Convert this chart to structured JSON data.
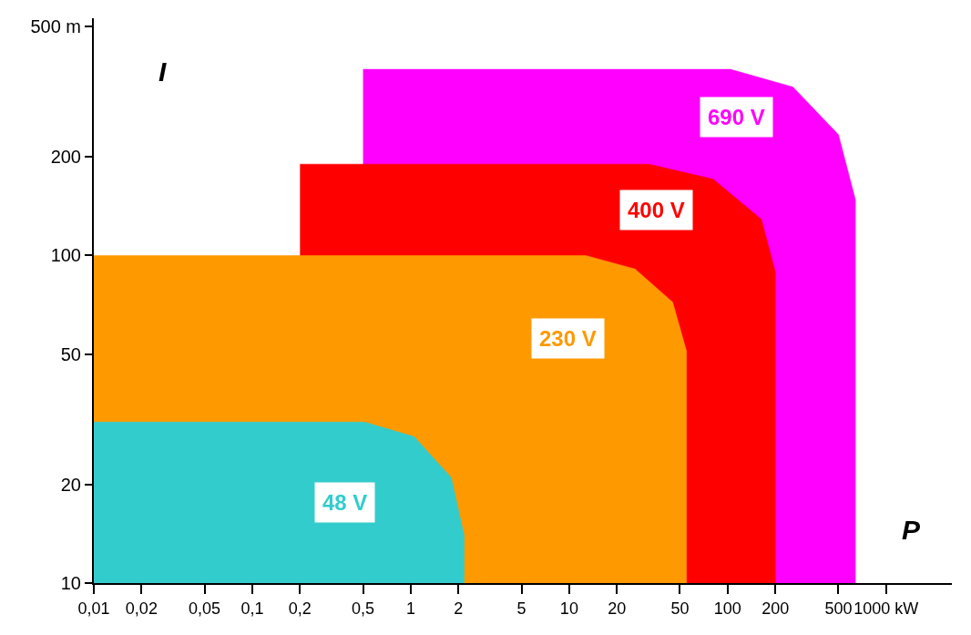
{
  "chart_data": {
    "type": "area",
    "xlabel": "P",
    "ylabel": "I",
    "log": "xy",
    "grid": false,
    "legend": false,
    "marker": "none",
    "xlim": [
      0.01,
      2600
    ],
    "ylim": [
      10,
      530
    ],
    "xticks": [
      {
        "value": 0.01,
        "label": "0,01"
      },
      {
        "value": 0.02,
        "label": "0,02"
      },
      {
        "value": 0.05,
        "label": "0,05"
      },
      {
        "value": 0.1,
        "label": "0,1"
      },
      {
        "value": 0.2,
        "label": "0,2"
      },
      {
        "value": 0.5,
        "label": "0,5"
      },
      1,
      2,
      5,
      10,
      20,
      50,
      100,
      200,
      500,
      {
        "value": 1000,
        "label": "1000 kW"
      }
    ],
    "yticks": [
      10,
      20,
      50,
      100,
      200,
      {
        "value": 500,
        "label": "500 m"
      }
    ],
    "series": [
      {
        "name": "48 V",
        "color": "#33cccc",
        "x": [
          0.01,
          0.51,
          1.05,
          1.8,
          2.17,
          2.17
        ],
        "values": [
          31,
          31,
          28,
          21,
          14,
          10
        ]
      },
      {
        "name": "230 V",
        "color": "#ff9900",
        "x": [
          0.01,
          12.7,
          26,
          45,
          55,
          55
        ],
        "values": [
          100,
          100,
          91,
          72,
          51,
          10
        ]
      },
      {
        "name": "400 V",
        "color": "#ff0000",
        "x": [
          0.2,
          32,
          81,
          163,
          200,
          200
        ],
        "values": [
          190,
          190,
          171,
          129,
          89,
          10
        ]
      },
      {
        "name": "690 V",
        "color": "#ff00ff",
        "x": [
          0.5,
          104,
          258,
          500,
          640,
          640
        ],
        "values": [
          370,
          370,
          327,
          234,
          148,
          10
        ]
      }
    ]
  }
}
